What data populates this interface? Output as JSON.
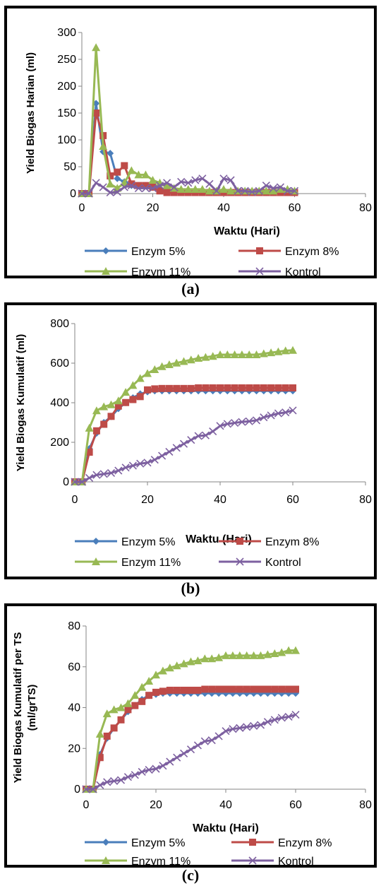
{
  "figure": {
    "captions": [
      "(a)",
      "(b)",
      "(c)"
    ]
  },
  "chart_data": [
    {
      "type": "line",
      "panel": "a",
      "xlabel": "Waktu (Hari)",
      "ylabel": "Yield Biogas Harian (ml)",
      "xlim": [
        0,
        80
      ],
      "ylim": [
        0,
        300
      ],
      "xticks": [
        0,
        20,
        40,
        60,
        80
      ],
      "yticks": [
        0,
        50,
        100,
        150,
        200,
        250,
        300
      ],
      "grid": false,
      "legend": "bottom",
      "series": [
        {
          "name": "Enzym 5%",
          "color": "#4a7ebb",
          "marker": "diamond",
          "x": [
            0,
            2,
            4,
            6,
            8,
            10,
            12,
            14,
            16,
            18,
            20,
            22,
            24,
            26,
            28,
            30,
            32,
            34,
            36,
            38,
            40,
            42,
            44,
            46,
            48,
            50,
            52,
            54,
            56,
            58,
            60
          ],
          "y": [
            0,
            0,
            168,
            78,
            75,
            28,
            22,
            15,
            15,
            15,
            12,
            10,
            5,
            5,
            5,
            3,
            3,
            2,
            2,
            2,
            2,
            2,
            2,
            2,
            2,
            2,
            2,
            2,
            2,
            2,
            2
          ]
        },
        {
          "name": "Enzym 8%",
          "color": "#be4b48",
          "marker": "square",
          "x": [
            0,
            2,
            4,
            6,
            8,
            10,
            12,
            14,
            16,
            18,
            20,
            22,
            24,
            26,
            28,
            30,
            32,
            34,
            36,
            38,
            40,
            42,
            44,
            46,
            48,
            50,
            52,
            54,
            56,
            58,
            60
          ],
          "y": [
            0,
            0,
            150,
            108,
            33,
            40,
            52,
            18,
            15,
            15,
            12,
            5,
            2,
            2,
            2,
            2,
            2,
            2,
            2,
            2,
            2,
            2,
            2,
            2,
            2,
            2,
            2,
            2,
            2,
            2,
            2
          ]
        },
        {
          "name": "Enzym 11%",
          "color": "#98b954",
          "marker": "triangle",
          "x": [
            0,
            2,
            4,
            6,
            8,
            10,
            12,
            14,
            16,
            18,
            20,
            22,
            24,
            26,
            28,
            30,
            32,
            34,
            36,
            38,
            40,
            42,
            44,
            46,
            48,
            50,
            52,
            54,
            56,
            58,
            60
          ],
          "y": [
            0,
            0,
            272,
            88,
            18,
            10,
            20,
            43,
            35,
            35,
            25,
            20,
            15,
            10,
            8,
            8,
            8,
            8,
            5,
            5,
            8,
            5,
            5,
            5,
            5,
            5,
            5,
            5,
            8,
            8,
            5
          ]
        },
        {
          "name": "Kontrol",
          "color": "#7d60a0",
          "marker": "x",
          "x": [
            0,
            2,
            4,
            6,
            8,
            10,
            12,
            14,
            16,
            18,
            20,
            22,
            24,
            26,
            28,
            30,
            32,
            34,
            36,
            38,
            40,
            42,
            44,
            46,
            48,
            50,
            52,
            54,
            56,
            58,
            60
          ],
          "y": [
            0,
            0,
            20,
            12,
            2,
            3,
            12,
            15,
            10,
            10,
            10,
            15,
            20,
            12,
            22,
            20,
            25,
            28,
            18,
            5,
            28,
            25,
            5,
            5,
            3,
            5,
            15,
            10,
            12,
            5,
            5
          ]
        }
      ]
    },
    {
      "type": "line",
      "panel": "b",
      "xlabel": "Waktu (Hari)",
      "ylabel": "Yield Biogas Kumulatif (ml)",
      "xlim": [
        0,
        80
      ],
      "ylim": [
        0,
        800
      ],
      "xticks": [
        0,
        20,
        40,
        60,
        80
      ],
      "yticks": [
        0,
        200,
        400,
        600,
        800
      ],
      "grid": false,
      "legend": "bottom",
      "series": [
        {
          "name": "Enzym 5%",
          "color": "#4a7ebb",
          "marker": "diamond",
          "x": [
            0,
            2,
            4,
            6,
            8,
            10,
            12,
            14,
            16,
            18,
            20,
            22,
            24,
            26,
            28,
            30,
            32,
            34,
            36,
            38,
            40,
            42,
            44,
            46,
            48,
            50,
            52,
            54,
            56,
            58,
            60
          ],
          "y": [
            0,
            0,
            168,
            246,
            300,
            330,
            370,
            400,
            425,
            445,
            455,
            460,
            460,
            460,
            460,
            460,
            460,
            460,
            460,
            460,
            460,
            460,
            460,
            460,
            460,
            460,
            460,
            460,
            460,
            460,
            460
          ]
        },
        {
          "name": "Enzym 8%",
          "color": "#be4b48",
          "marker": "square",
          "x": [
            0,
            2,
            4,
            6,
            8,
            10,
            12,
            14,
            16,
            18,
            20,
            22,
            24,
            26,
            28,
            30,
            32,
            34,
            36,
            38,
            40,
            42,
            44,
            46,
            48,
            50,
            52,
            54,
            56,
            58,
            60
          ],
          "y": [
            0,
            0,
            150,
            258,
            291,
            331,
            383,
            401,
            416,
            431,
            465,
            470,
            472,
            472,
            472,
            472,
            472,
            475,
            475,
            475,
            475,
            475,
            475,
            475,
            475,
            475,
            475,
            475,
            475,
            475,
            475
          ]
        },
        {
          "name": "Enzym 11%",
          "color": "#98b954",
          "marker": "triangle",
          "x": [
            0,
            2,
            4,
            6,
            8,
            10,
            12,
            14,
            16,
            18,
            20,
            22,
            24,
            26,
            28,
            30,
            32,
            34,
            36,
            38,
            40,
            42,
            44,
            46,
            48,
            50,
            52,
            54,
            56,
            58,
            60
          ],
          "y": [
            0,
            0,
            272,
            360,
            380,
            390,
            410,
            453,
            488,
            523,
            548,
            568,
            583,
            593,
            601,
            609,
            617,
            625,
            630,
            635,
            643,
            643,
            643,
            643,
            643,
            643,
            648,
            653,
            658,
            663,
            665
          ]
        },
        {
          "name": "Kontrol",
          "color": "#7d60a0",
          "marker": "x",
          "x": [
            0,
            2,
            4,
            6,
            8,
            10,
            12,
            14,
            16,
            18,
            20,
            22,
            24,
            26,
            28,
            30,
            32,
            34,
            36,
            38,
            40,
            42,
            44,
            46,
            48,
            50,
            52,
            54,
            56,
            58,
            60
          ],
          "y": [
            0,
            0,
            20,
            35,
            40,
            45,
            57,
            72,
            82,
            92,
            97,
            112,
            132,
            152,
            172,
            192,
            212,
            232,
            235,
            255,
            283,
            293,
            298,
            303,
            306,
            311,
            326,
            336,
            346,
            351,
            361
          ]
        }
      ]
    },
    {
      "type": "line",
      "panel": "c",
      "xlabel": "Waktu (Hari)",
      "ylabel_lines": [
        "Yield Biogas Kumulatif per TS",
        "(ml/grTS)"
      ],
      "xlim": [
        0,
        80
      ],
      "ylim": [
        0,
        80
      ],
      "xticks": [
        0,
        20,
        40,
        60,
        80
      ],
      "yticks": [
        0,
        20,
        40,
        60,
        80
      ],
      "grid": false,
      "legend": "bottom",
      "series": [
        {
          "name": "Enzym 5%",
          "color": "#4a7ebb",
          "marker": "diamond",
          "x": [
            0,
            2,
            4,
            6,
            8,
            10,
            12,
            14,
            16,
            18,
            20,
            22,
            24,
            26,
            28,
            30,
            32,
            34,
            36,
            38,
            40,
            42,
            44,
            46,
            48,
            50,
            52,
            54,
            56,
            58,
            60
          ],
          "y": [
            0,
            0,
            17,
            25,
            30,
            34,
            38,
            41,
            44,
            46,
            46.5,
            47,
            47,
            47,
            47,
            47,
            47,
            47,
            47,
            47,
            47,
            47,
            47,
            47,
            47,
            47,
            47,
            47,
            47,
            47,
            47
          ]
        },
        {
          "name": "Enzym 8%",
          "color": "#be4b48",
          "marker": "square",
          "x": [
            0,
            2,
            4,
            6,
            8,
            10,
            12,
            14,
            16,
            18,
            20,
            22,
            24,
            26,
            28,
            30,
            32,
            34,
            36,
            38,
            40,
            42,
            44,
            46,
            48,
            50,
            52,
            54,
            56,
            58,
            60
          ],
          "y": [
            0,
            0,
            15.5,
            26,
            30,
            34,
            39,
            41,
            43,
            46,
            47.5,
            48,
            48.5,
            48.5,
            48.5,
            48.5,
            48.5,
            49,
            49,
            49,
            49,
            49,
            49,
            49,
            49,
            49,
            49,
            49,
            49,
            49,
            49
          ]
        },
        {
          "name": "Enzym 11%",
          "color": "#98b954",
          "marker": "triangle",
          "x": [
            0,
            2,
            4,
            6,
            8,
            10,
            12,
            14,
            16,
            18,
            20,
            22,
            24,
            26,
            28,
            30,
            32,
            34,
            36,
            38,
            40,
            42,
            44,
            46,
            48,
            50,
            52,
            54,
            56,
            58,
            60
          ],
          "y": [
            0,
            0,
            27,
            37,
            39,
            40,
            42,
            46,
            50,
            53,
            56,
            58,
            59.5,
            60.5,
            61.5,
            62.5,
            63,
            64,
            64,
            64.5,
            65.5,
            65.5,
            65.5,
            65.5,
            65.5,
            65.5,
            66,
            66.5,
            67,
            68,
            68
          ]
        },
        {
          "name": "Kontrol",
          "color": "#7d60a0",
          "marker": "x",
          "x": [
            0,
            2,
            4,
            6,
            8,
            10,
            12,
            14,
            16,
            18,
            20,
            22,
            24,
            26,
            28,
            30,
            32,
            34,
            36,
            38,
            40,
            42,
            44,
            46,
            48,
            50,
            52,
            54,
            56,
            58,
            60
          ],
          "y": [
            0,
            0,
            2,
            3.5,
            4,
            4.5,
            6,
            7,
            8.5,
            9.5,
            10,
            11.5,
            13.5,
            15.5,
            17.5,
            19.5,
            21.5,
            23.5,
            24,
            26,
            28.5,
            29.5,
            30,
            30.5,
            31,
            31.5,
            33,
            34,
            35,
            35.5,
            36.5
          ]
        }
      ]
    }
  ]
}
